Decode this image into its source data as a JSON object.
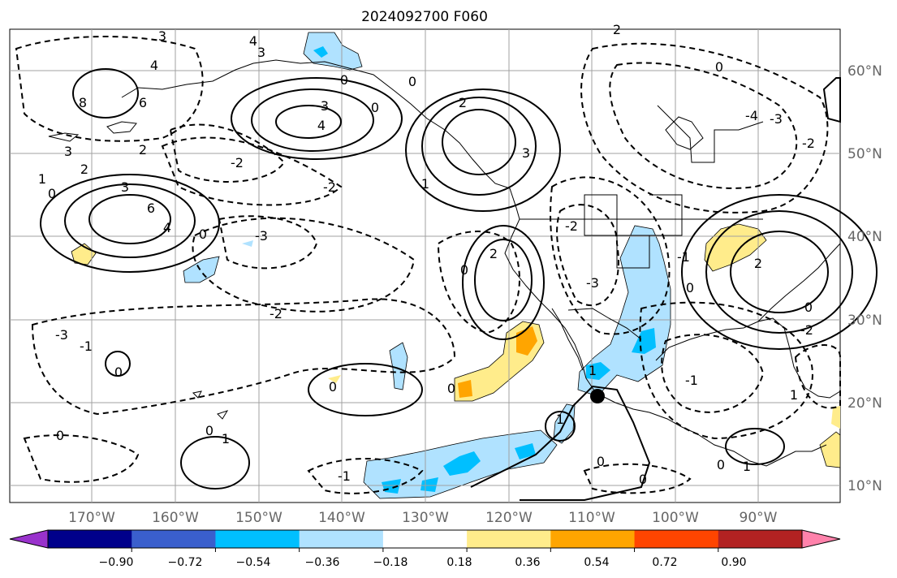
{
  "title": "2024092700 F060",
  "lon_labels": [
    "170°W",
    "160°W",
    "150°W",
    "140°W",
    "130°W",
    "120°W",
    "110°W",
    "100°W",
    "90°W"
  ],
  "lat_labels": [
    "60°N",
    "50°N",
    "40°N",
    "30°N",
    "20°N",
    "10°N"
  ],
  "colorbar": {
    "colors": [
      "#9932CC",
      "#00008B",
      "#3A5FCD",
      "#00BFFF",
      "#B0E2FF",
      "#FFFFFF",
      "#FFEC8B",
      "#FFA500",
      "#FF4500",
      "#B22222",
      "#FF82AB"
    ],
    "tick_labels": [
      "−0.90",
      "−0.72",
      "−0.54",
      "−0.36",
      "−0.18",
      "0.18",
      "0.36",
      "0.54",
      "0.72",
      "0.90"
    ],
    "boundaries": [
      -0.9,
      -0.72,
      -0.54,
      -0.36,
      -0.18,
      0.18,
      0.36,
      0.54,
      0.72,
      0.9
    ],
    "extend": "both"
  },
  "contour_labels": [
    "3",
    "4",
    "8",
    "6",
    "4",
    "3",
    "3",
    "2",
    "1",
    "0",
    "0",
    "2",
    "3",
    "4",
    "6",
    "3",
    "4",
    "0",
    "-2",
    "-3",
    "-2",
    "-2",
    "-3",
    "-2",
    "-1",
    "-3",
    "-1",
    "0",
    "2",
    "3",
    "-3",
    "-2",
    "2",
    "-2",
    "-3",
    "0",
    "1",
    "0",
    "-1",
    "0",
    "0",
    "0",
    "0",
    "-1",
    "1",
    "0",
    "1",
    "0",
    "1",
    "0",
    "-1",
    "-4",
    "-3",
    "-2",
    "2",
    "0",
    "-1",
    "1",
    "-2",
    "0",
    "0",
    "1",
    "2",
    "0"
  ],
  "marker": {
    "label": "storm-center",
    "lon": -110.8,
    "lat": 20.7
  }
}
